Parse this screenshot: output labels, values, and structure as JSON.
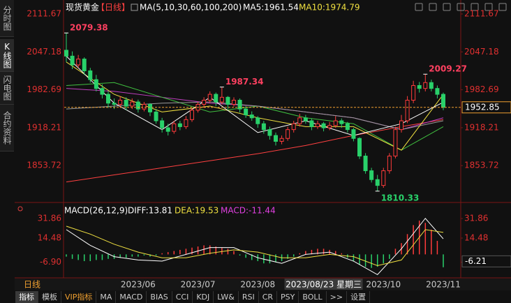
{
  "sidebar": [
    "分时图",
    "K线图",
    "闪电图",
    "合约资料"
  ],
  "sidebar_active": 1,
  "bottom_tabs": [
    "指标",
    "模板",
    "VIP指标",
    "MA",
    "MACD",
    "BIAS",
    "CCI",
    "KDJ",
    "LW&",
    "RSI",
    "CR",
    "PSY",
    "BOLL",
    ">>",
    "设置"
  ],
  "bottom_tabs_active": 0,
  "period_tab": "日线",
  "chart_data": {
    "type": "candlestick",
    "title": "现货黄金",
    "subtitle": "【日线】",
    "ma_header": "MA(5,10,30,60,100,200)",
    "ma_values": [
      {
        "label": "MA5:1961.54",
        "color": "#ffffff"
      },
      {
        "label": "MA10:1974.79",
        "color": "#f0e040"
      }
    ],
    "ylim": [
      1797,
      2129.5
    ],
    "yticks": [
      2111.67,
      2047.18,
      1982.69,
      1918.21,
      1853.72
    ],
    "categories": [
      null,
      null,
      null,
      null,
      null,
      null,
      null,
      null,
      null,
      null,
      null,
      null,
      "2023/06",
      null,
      null,
      null,
      null,
      null,
      null,
      null,
      null,
      null,
      "2023/07",
      null,
      null,
      null,
      null,
      null,
      null,
      null,
      null,
      null,
      "2023/08",
      null,
      null,
      null,
      null,
      null,
      null,
      null,
      null,
      null,
      null,
      "2023/08/23 星期三",
      null,
      null,
      null,
      null,
      null,
      null,
      null,
      null,
      null,
      "2023/10",
      null,
      null,
      null,
      null,
      null,
      null,
      null,
      null,
      null,
      "2023/11"
    ],
    "highlight_category": 43,
    "up_color": "#ff3b3b",
    "down_color": "#29d16a",
    "candles": [
      [
        2050,
        2079.38,
        2030,
        2040
      ],
      [
        2040,
        2048,
        2018,
        2025
      ],
      [
        2025,
        2042,
        2020,
        2035
      ],
      [
        2035,
        2038,
        2008,
        2015
      ],
      [
        2015,
        2020,
        1995,
        2000
      ],
      [
        2000,
        2008,
        1980,
        1985
      ],
      [
        1985,
        1992,
        1968,
        1975
      ],
      [
        1975,
        1980,
        1952,
        1960
      ],
      [
        1960,
        1968,
        1950,
        1958
      ],
      [
        1958,
        1972,
        1952,
        1965
      ],
      [
        1965,
        1970,
        1948,
        1955
      ],
      [
        1955,
        1968,
        1950,
        1962
      ],
      [
        1962,
        1966,
        1944,
        1950
      ],
      [
        1950,
        1962,
        1946,
        1958
      ],
      [
        1958,
        1960,
        1938,
        1945
      ],
      [
        1945,
        1950,
        1925,
        1930
      ],
      [
        1930,
        1935,
        1910,
        1918
      ],
      [
        1918,
        1925,
        1905,
        1912
      ],
      [
        1912,
        1930,
        1908,
        1925
      ],
      [
        1925,
        1930,
        1914,
        1920
      ],
      [
        1920,
        1938,
        1916,
        1932
      ],
      [
        1932,
        1952,
        1928,
        1948
      ],
      [
        1948,
        1962,
        1944,
        1958
      ],
      [
        1958,
        1970,
        1952,
        1965
      ],
      [
        1965,
        1980,
        1960,
        1975
      ],
      [
        1975,
        1978,
        1955,
        1962
      ],
      [
        1962,
        1987.34,
        1958,
        1970
      ],
      [
        1970,
        1972,
        1950,
        1958
      ],
      [
        1958,
        1970,
        1954,
        1965
      ],
      [
        1965,
        1968,
        1944,
        1950
      ],
      [
        1950,
        1955,
        1935,
        1940
      ],
      [
        1940,
        1946,
        1930,
        1935
      ],
      [
        1935,
        1938,
        1918,
        1925
      ],
      [
        1925,
        1930,
        1908,
        1915
      ],
      [
        1915,
        1920,
        1898,
        1905
      ],
      [
        1905,
        1910,
        1888,
        1895
      ],
      [
        1895,
        1905,
        1890,
        1900
      ],
      [
        1900,
        1920,
        1896,
        1915
      ],
      [
        1915,
        1930,
        1910,
        1925
      ],
      [
        1925,
        1942,
        1920,
        1935
      ],
      [
        1935,
        1940,
        1925,
        1930
      ],
      [
        1930,
        1934,
        1914,
        1920
      ],
      [
        1920,
        1930,
        1916,
        1925
      ],
      [
        1925,
        1928,
        1912,
        1918
      ],
      [
        1918,
        1928,
        1914,
        1922
      ],
      [
        1922,
        1938,
        1918,
        1930
      ],
      [
        1930,
        1934,
        1918,
        1925
      ],
      [
        1925,
        1928,
        1910,
        1915
      ],
      [
        1915,
        1918,
        1895,
        1900
      ],
      [
        1900,
        1902,
        1865,
        1870
      ],
      [
        1870,
        1875,
        1840,
        1845
      ],
      [
        1845,
        1850,
        1825,
        1830
      ],
      [
        1830,
        1838,
        1810.33,
        1820
      ],
      [
        1820,
        1850,
        1816,
        1845
      ],
      [
        1845,
        1875,
        1840,
        1870
      ],
      [
        1870,
        1920,
        1866,
        1915
      ],
      [
        1915,
        1940,
        1910,
        1930
      ],
      [
        1930,
        1972,
        1926,
        1965
      ],
      [
        1965,
        1998,
        1960,
        1990
      ],
      [
        1990,
        1996,
        1978,
        1985
      ],
      [
        1985,
        2009.27,
        1980,
        1995
      ],
      [
        1995,
        2000,
        1980,
        1985
      ],
      [
        1985,
        1990,
        1968,
        1975
      ],
      [
        1975,
        1978,
        1948,
        1952.85
      ]
    ],
    "extreme_labels": [
      2079.38,
      1987.34,
      2009.27,
      1810.33
    ],
    "last_price": 1952.85,
    "ma_lines": [
      {
        "color": "#ff4040",
        "x": [
          0,
          8,
          16,
          24,
          32,
          40,
          48,
          56,
          63
        ],
        "values": [
          1826,
          1838,
          1850,
          1862,
          1874,
          1888,
          1905,
          1920,
          1932
        ]
      },
      {
        "color": "#c040c0",
        "x": [
          0,
          8,
          16,
          24,
          32,
          40,
          48,
          56,
          63
        ],
        "values": [
          1985,
          1980,
          1970,
          1960,
          1955,
          1945,
          1935,
          1915,
          1935
        ]
      },
      {
        "color": "#40c040",
        "x": [
          0,
          8,
          16,
          24,
          32,
          40,
          48,
          56,
          63
        ],
        "values": [
          1990,
          1995,
          1970,
          1945,
          1955,
          1935,
          1925,
          1880,
          1920
        ]
      },
      {
        "color": "#999999",
        "x": [
          0,
          8,
          16,
          24,
          32,
          40,
          48,
          56,
          63
        ],
        "values": [
          1950,
          1955,
          1960,
          1962,
          1955,
          1945,
          1935,
          1915,
          1930
        ]
      },
      {
        "color": "#f0e040",
        "x": [
          0,
          8,
          16,
          24,
          32,
          40,
          48,
          56,
          63
        ],
        "values": [
          2030,
          1975,
          1945,
          1955,
          1935,
          1920,
          1920,
          1880,
          1974.79
        ]
      },
      {
        "color": "#ffffff",
        "x": [
          0,
          8,
          16,
          24,
          32,
          40,
          48,
          56,
          63
        ],
        "values": [
          2040,
          1960,
          1915,
          1970,
          1910,
          1930,
          1905,
          1925,
          1961.54
        ]
      }
    ],
    "macd": {
      "header": "MACD(26,12,9)",
      "items": [
        {
          "label": "DIFF:13.81",
          "color": "#ffffff"
        },
        {
          "label": "DEA:19.53",
          "color": "#f0e040"
        },
        {
          "label": "MACD:-11.44",
          "color": "#e040e0"
        }
      ],
      "ylim": [
        -19,
        43
      ],
      "yticks": [
        31.86,
        14.48,
        {
          "value": -6.9,
          "label": "-6.90"
        }
      ],
      "marker": -6.21,
      "histogram": [
        -2,
        -4,
        -5,
        -6,
        -6,
        -5,
        -5,
        -4,
        -4,
        -3,
        -3,
        -2,
        -2,
        -1,
        -2,
        -1,
        1,
        2,
        3,
        4,
        5,
        6,
        7,
        8,
        8,
        7,
        6,
        5,
        3,
        -1,
        -3,
        -5,
        -6,
        -8,
        -8,
        -7,
        -6,
        -4,
        -2,
        1,
        3,
        4,
        5,
        5,
        4,
        3,
        1,
        -3,
        -6,
        -9,
        -11,
        -12,
        -11,
        -8,
        -4,
        5,
        10,
        18,
        26,
        30,
        28,
        22,
        12,
        -11.44
      ],
      "series": [
        {
          "color": "#ffffff",
          "x": [
            0,
            4,
            8,
            12,
            16,
            20,
            24,
            28,
            32,
            36,
            40,
            44,
            48,
            52,
            56,
            60,
            63
          ],
          "values": [
            22,
            8,
            -2,
            -5,
            -6,
            0,
            6,
            6,
            -3,
            -8,
            0,
            2,
            -6,
            -18,
            5,
            32,
            13.81
          ]
        },
        {
          "color": "#f0e040",
          "x": [
            0,
            4,
            8,
            12,
            16,
            20,
            24,
            28,
            32,
            36,
            40,
            44,
            48,
            52,
            56,
            60,
            63
          ],
          "values": [
            25,
            18,
            9,
            2,
            -3,
            -3,
            1,
            4,
            2,
            -3,
            -3,
            0,
            -2,
            -10,
            -5,
            22,
            19.53
          ]
        }
      ]
    }
  }
}
